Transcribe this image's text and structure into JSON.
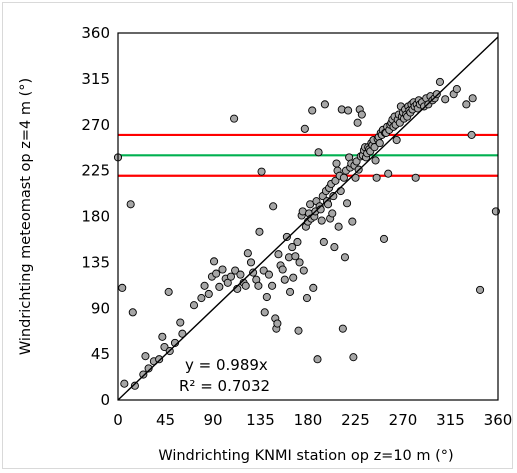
{
  "chart_data": {
    "type": "scatter",
    "title": "",
    "xlabel": "Windrichting KNMI station op z=10 m (°)",
    "ylabel": "Windrichting meteomast op z=4 m (°)",
    "xlim": [
      0,
      360
    ],
    "ylim": [
      0,
      360
    ],
    "xticks": [
      0,
      45,
      90,
      135,
      180,
      225,
      270,
      315,
      360
    ],
    "yticks": [
      0,
      45,
      90,
      135,
      180,
      225,
      270,
      315,
      360
    ],
    "grid": false,
    "legend": "none",
    "trendline": {
      "slope": 0.989,
      "intercept": 0,
      "label": "y = 0.989x"
    },
    "r_squared_label": "R² = 0.7032",
    "reference_lines": [
      {
        "y": 260,
        "color": "#ff0000"
      },
      {
        "y": 240,
        "color": "#00b050"
      },
      {
        "y": 220,
        "color": "#ff0000"
      }
    ],
    "colors": {
      "marker_fill": "#a6a6a6",
      "marker_edge": "#000000",
      "trend": "#000000"
    },
    "points": [
      [
        0,
        238
      ],
      [
        4,
        110
      ],
      [
        6,
        16
      ],
      [
        12,
        192
      ],
      [
        14,
        86
      ],
      [
        16,
        14
      ],
      [
        24,
        25
      ],
      [
        26,
        43
      ],
      [
        29,
        31
      ],
      [
        34,
        38
      ],
      [
        39,
        40
      ],
      [
        42,
        62
      ],
      [
        44,
        52
      ],
      [
        48,
        106
      ],
      [
        49,
        48
      ],
      [
        54,
        56
      ],
      [
        59,
        76
      ],
      [
        61,
        65
      ],
      [
        72,
        93
      ],
      [
        79,
        100
      ],
      [
        82,
        112
      ],
      [
        86,
        104
      ],
      [
        89,
        121
      ],
      [
        91,
        136
      ],
      [
        93,
        124
      ],
      [
        96,
        111
      ],
      [
        99,
        128
      ],
      [
        102,
        119
      ],
      [
        104,
        115
      ],
      [
        107,
        121
      ],
      [
        110,
        276
      ],
      [
        111,
        127
      ],
      [
        113,
        109
      ],
      [
        116,
        123
      ],
      [
        119,
        115
      ],
      [
        121,
        112
      ],
      [
        123,
        144
      ],
      [
        126,
        135
      ],
      [
        128,
        125
      ],
      [
        131,
        118
      ],
      [
        133,
        112
      ],
      [
        134,
        165
      ],
      [
        136,
        224
      ],
      [
        138,
        127
      ],
      [
        139,
        86
      ],
      [
        141,
        101
      ],
      [
        143,
        123
      ],
      [
        146,
        112
      ],
      [
        147,
        190
      ],
      [
        149,
        80
      ],
      [
        150,
        70
      ],
      [
        151,
        75
      ],
      [
        152,
        143
      ],
      [
        154,
        132
      ],
      [
        156,
        128
      ],
      [
        158,
        118
      ],
      [
        160,
        160
      ],
      [
        162,
        140
      ],
      [
        163,
        106
      ],
      [
        165,
        150
      ],
      [
        166,
        120
      ],
      [
        168,
        141
      ],
      [
        170,
        155
      ],
      [
        171,
        68
      ],
      [
        172,
        135
      ],
      [
        174,
        181
      ],
      [
        175,
        185
      ],
      [
        176,
        127
      ],
      [
        177,
        266
      ],
      [
        178,
        170
      ],
      [
        179,
        100
      ],
      [
        180,
        175
      ],
      [
        181,
        183
      ],
      [
        182,
        192
      ],
      [
        183,
        178
      ],
      [
        184,
        284
      ],
      [
        185,
        110
      ],
      [
        186,
        180
      ],
      [
        187,
        185
      ],
      [
        188,
        195
      ],
      [
        189,
        40
      ],
      [
        190,
        243
      ],
      [
        191,
        190
      ],
      [
        192,
        187
      ],
      [
        193,
        176
      ],
      [
        194,
        200
      ],
      [
        195,
        155
      ],
      [
        196,
        290
      ],
      [
        197,
        205
      ],
      [
        198,
        195
      ],
      [
        199,
        192
      ],
      [
        200,
        208
      ],
      [
        201,
        178
      ],
      [
        202,
        212
      ],
      [
        203,
        183
      ],
      [
        204,
        200
      ],
      [
        205,
        150
      ],
      [
        206,
        215
      ],
      [
        207,
        232
      ],
      [
        208,
        225
      ],
      [
        209,
        170
      ],
      [
        210,
        220
      ],
      [
        211,
        205
      ],
      [
        212,
        285
      ],
      [
        213,
        70
      ],
      [
        214,
        218
      ],
      [
        215,
        140
      ],
      [
        216,
        225
      ],
      [
        217,
        193
      ],
      [
        218,
        284
      ],
      [
        219,
        238
      ],
      [
        220,
        228
      ],
      [
        221,
        232
      ],
      [
        222,
        175
      ],
      [
        223,
        42
      ],
      [
        224,
        230
      ],
      [
        225,
        218
      ],
      [
        226,
        234
      ],
      [
        227,
        272
      ],
      [
        228,
        226
      ],
      [
        229,
        285
      ],
      [
        230,
        239
      ],
      [
        231,
        280
      ],
      [
        232,
        240
      ],
      [
        233,
        245
      ],
      [
        234,
        248
      ],
      [
        235,
        238
      ],
      [
        236,
        242
      ],
      [
        237,
        248
      ],
      [
        238,
        246
      ],
      [
        239,
        244
      ],
      [
        240,
        252
      ],
      [
        241,
        250
      ],
      [
        242,
        255
      ],
      [
        243,
        248
      ],
      [
        244,
        235
      ],
      [
        245,
        218
      ],
      [
        246,
        256
      ],
      [
        247,
        258
      ],
      [
        248,
        252
      ],
      [
        249,
        262
      ],
      [
        250,
        260
      ],
      [
        251,
        265
      ],
      [
        252,
        158
      ],
      [
        253,
        262
      ],
      [
        254,
        262
      ],
      [
        255,
        268
      ],
      [
        256,
        222
      ],
      [
        257,
        265
      ],
      [
        258,
        270
      ],
      [
        259,
        272
      ],
      [
        260,
        275
      ],
      [
        261,
        268
      ],
      [
        262,
        278
      ],
      [
        263,
        270
      ],
      [
        264,
        255
      ],
      [
        265,
        275
      ],
      [
        266,
        280
      ],
      [
        267,
        272
      ],
      [
        268,
        288
      ],
      [
        269,
        278
      ],
      [
        270,
        282
      ],
      [
        271,
        276
      ],
      [
        272,
        285
      ],
      [
        273,
        280
      ],
      [
        274,
        278
      ],
      [
        275,
        288
      ],
      [
        276,
        284
      ],
      [
        277,
        282
      ],
      [
        278,
        290
      ],
      [
        279,
        285
      ],
      [
        280,
        292
      ],
      [
        281,
        288
      ],
      [
        282,
        218
      ],
      [
        283,
        290
      ],
      [
        284,
        286
      ],
      [
        285,
        294
      ],
      [
        286,
        290
      ],
      [
        288,
        292
      ],
      [
        290,
        288
      ],
      [
        292,
        296
      ],
      [
        294,
        290
      ],
      [
        296,
        298
      ],
      [
        298,
        294
      ],
      [
        300,
        296
      ],
      [
        302,
        300
      ],
      [
        305,
        312
      ],
      [
        310,
        295
      ],
      [
        318,
        300
      ],
      [
        321,
        305
      ],
      [
        330,
        290
      ],
      [
        335,
        260
      ],
      [
        336,
        296
      ],
      [
        343,
        108
      ],
      [
        358,
        185
      ]
    ]
  }
}
